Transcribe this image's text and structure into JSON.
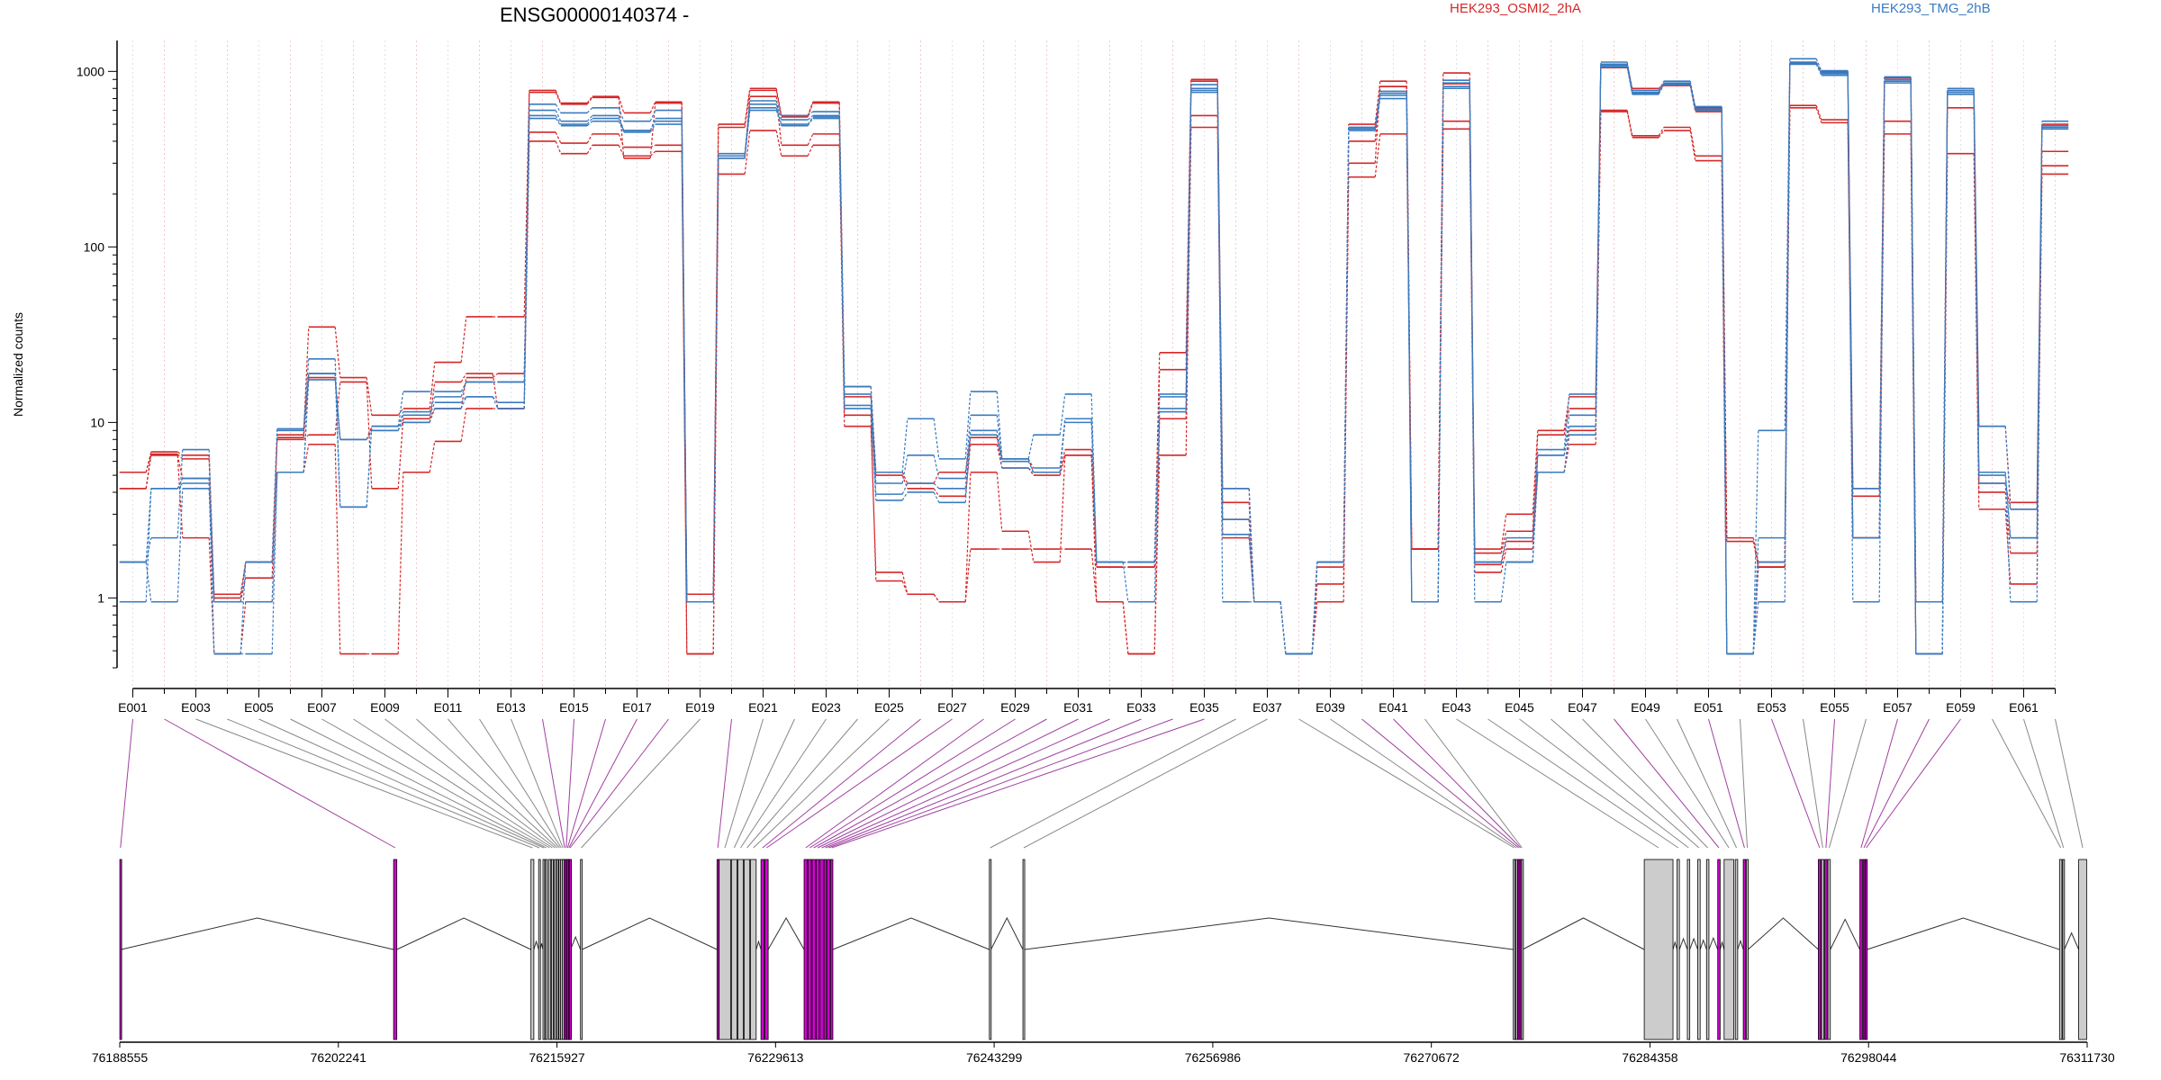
{
  "chart_data": {
    "type": "line",
    "title": "ENSG00000140374 -",
    "ylabel": "Normalized counts",
    "y_scale": "log",
    "ylim": [
      0.4,
      1500
    ],
    "y_ticks": [
      {
        "v": 1,
        "label": "1"
      },
      {
        "v": 10,
        "label": "10"
      },
      {
        "v": 100,
        "label": "100"
      },
      {
        "v": 1000,
        "label": "1000"
      }
    ],
    "grid": "vertical dotted lines at each exon",
    "legend": [
      {
        "name": "HEK293_OSMI2_2hA",
        "color": "#d62728"
      },
      {
        "name": "HEK293_TMG_2hB",
        "color": "#3a7bbf"
      }
    ],
    "categories": [
      "E001",
      "E002",
      "E003",
      "E004",
      "E005",
      "E006",
      "E007",
      "E008",
      "E009",
      "E010",
      "E011",
      "E012",
      "E013",
      "E014",
      "E015",
      "E016",
      "E017",
      "E018",
      "E019",
      "E020",
      "E021",
      "E022",
      "E023",
      "E024",
      "E025",
      "E026",
      "E027",
      "E028",
      "E029",
      "E030",
      "E031",
      "E032",
      "E033",
      "E034",
      "E035",
      "E036",
      "E037",
      "E038",
      "E039",
      "E040",
      "E041",
      "E042",
      "E043",
      "E044",
      "E045",
      "E046",
      "E047",
      "E048",
      "E049",
      "E050",
      "E051",
      "E052",
      "E053",
      "E054",
      "E055",
      "E056",
      "E057",
      "E058",
      "E059",
      "E060",
      "E061",
      "E062"
    ],
    "tick_labels": [
      "E001",
      "E003",
      "E005",
      "E007",
      "E009",
      "E011",
      "E013",
      "E015",
      "E017",
      "E019",
      "E021",
      "E023",
      "E025",
      "E027",
      "E029",
      "E031",
      "E033",
      "E035",
      "E037",
      "E039",
      "E041",
      "E043",
      "E045",
      "E047",
      "E049",
      "E051",
      "E053",
      "E055",
      "E057",
      "E059",
      "E061"
    ],
    "series": [
      {
        "name": "HEK293_OSMI2_2hA",
        "color": "#d62728",
        "values": [
          5.2,
          6.8,
          6.5,
          1.05,
          1.6,
          8.5,
          35,
          18,
          11,
          12,
          22,
          40,
          40,
          780,
          660,
          720,
          580,
          670,
          1.05,
          500,
          800,
          560,
          670,
          16,
          5.2,
          4.5,
          5.2,
          8.2,
          6.2,
          5.2,
          7,
          1.5,
          1.5,
          25,
          900,
          4.2,
          0.95,
          0.48,
          1.6,
          500,
          880,
          1.9,
          980,
          1.9,
          3,
          9,
          14,
          1100,
          800,
          850,
          620,
          2.2,
          1.6,
          1120,
          1000,
          4.2,
          920,
          0.95,
          780,
          9.5,
          3.5,
          500
        ]
      },
      {
        "name": "HEK293_OSMI2_2hA",
        "color": "#d62728",
        "values": [
          4.2,
          6.6,
          6.2,
          0.95,
          1.3,
          8,
          8.5,
          17,
          4.2,
          10.5,
          12,
          18,
          19,
          450,
          390,
          440,
          370,
          380,
          0.48,
          320,
          720,
          380,
          440,
          14,
          5,
          4.2,
          3.8,
          7.5,
          5.5,
          5,
          6.5,
          1.5,
          1.5,
          20,
          880,
          3.5,
          0.95,
          0.48,
          1.5,
          400,
          820,
          1.9,
          850,
          1.8,
          2.4,
          8.5,
          12,
          1050,
          780,
          830,
          590,
          2.1,
          1.5,
          1100,
          980,
          3.8,
          880,
          0.95,
          760,
          4.5,
          3.2,
          350
        ]
      },
      {
        "name": "HEK293_OSMI2_2hA",
        "color": "#d62728",
        "values": [
          5.2,
          6.5,
          4.8,
          1.0,
          1.6,
          8.2,
          18,
          8,
          9.5,
          10,
          17,
          19,
          12,
          760,
          650,
          710,
          320,
          660,
          0.95,
          480,
          780,
          550,
          660,
          11,
          1.25,
          1.05,
          0.95,
          5.2,
          2.4,
          1.6,
          6.5,
          0.95,
          0.48,
          10.5,
          560,
          2.8,
          0.95,
          0.48,
          1.2,
          300,
          820,
          1.9,
          520,
          1.55,
          2.1,
          5.2,
          9,
          600,
          430,
          480,
          330,
          0.48,
          1.5,
          640,
          530,
          2.2,
          520,
          0.48,
          620,
          4,
          1.8,
          290
        ]
      },
      {
        "name": "HEK293_OSMI2_2hA",
        "color": "#d62728",
        "values": [
          4.2,
          6.5,
          2.2,
          0.48,
          0.95,
          5.2,
          7.5,
          0.48,
          0.48,
          5.2,
          7.8,
          12,
          12,
          400,
          340,
          380,
          330,
          350,
          0.48,
          260,
          460,
          330,
          380,
          9.5,
          1.4,
          1.05,
          0.95,
          1.9,
          1.9,
          1.9,
          1.9,
          0.95,
          0.48,
          6.5,
          480,
          2.2,
          0.95,
          0.48,
          0.95,
          250,
          440,
          1.9,
          470,
          1.4,
          1.9,
          5.2,
          7.5,
          590,
          420,
          460,
          310,
          0.48,
          1.5,
          620,
          510,
          2.2,
          440,
          0.48,
          340,
          3.2,
          1.2,
          260
        ]
      },
      {
        "name": "HEK293_TMG_2hB",
        "color": "#3a7bbf",
        "values": [
          1.6,
          2.2,
          7,
          0.95,
          1.6,
          9.2,
          23,
          3.3,
          9.5,
          15,
          15,
          17,
          17,
          650,
          580,
          620,
          520,
          600,
          0.95,
          330,
          680,
          560,
          590,
          16,
          5.2,
          10.5,
          6.2,
          15,
          6.2,
          8.5,
          14.5,
          1.6,
          1.6,
          14.5,
          840,
          4.2,
          0.95,
          0.48,
          1.6,
          480,
          770,
          0.95,
          890,
          1.6,
          1.6,
          7,
          14.5,
          1130,
          780,
          880,
          630,
          0.48,
          9,
          1180,
          1010,
          4.2,
          930,
          0.95,
          800,
          9.5,
          3.2,
          520
        ]
      },
      {
        "name": "HEK293_TMG_2hB",
        "color": "#3a7bbf",
        "values": [
          0.95,
          4.2,
          4.8,
          0.48,
          1.6,
          9,
          19,
          3.3,
          9.5,
          11.5,
          14,
          17,
          17,
          600,
          520,
          560,
          460,
          540,
          0.95,
          340,
          650,
          530,
          560,
          14.5,
          4.5,
          6.5,
          4.8,
          11,
          6.2,
          5.5,
          10.5,
          1.6,
          1.6,
          14,
          800,
          2.8,
          0.95,
          0.48,
          1.6,
          480,
          750,
          0.95,
          860,
          1.6,
          2.2,
          6.5,
          11,
          1100,
          760,
          860,
          610,
          0.48,
          2.2,
          1130,
          990,
          2.2,
          900,
          0.48,
          780,
          5.2,
          2.2,
          490
        ]
      },
      {
        "name": "HEK293_TMG_2hB",
        "color": "#3a7bbf",
        "values": [
          1.6,
          4.2,
          4.5,
          0.48,
          0.48,
          5.2,
          19,
          8,
          9,
          11,
          13,
          14,
          13,
          560,
          500,
          540,
          460,
          520,
          0.95,
          330,
          620,
          500,
          550,
          12.5,
          3.9,
          4.5,
          4.2,
          9,
          6,
          5.2,
          10.5,
          1.6,
          1.6,
          12,
          780,
          2.3,
          0.95,
          0.48,
          1.6,
          470,
          730,
          0.95,
          820,
          1.6,
          1.6,
          6.5,
          9.5,
          1080,
          750,
          850,
          610,
          0.48,
          1.6,
          1120,
          970,
          2.2,
          880,
          0.48,
          760,
          5,
          2.2,
          480
        ]
      },
      {
        "name": "HEK293_TMG_2hB",
        "color": "#3a7bbf",
        "values": [
          1.6,
          0.95,
          4.2,
          0.95,
          0.95,
          5.2,
          17.5,
          8,
          9,
          10,
          12,
          14,
          12,
          540,
          490,
          520,
          450,
          500,
          0.95,
          320,
          600,
          490,
          540,
          12,
          3.6,
          4,
          3.5,
          8.5,
          5.5,
          5.2,
          10,
          1.6,
          0.95,
          11.5,
          760,
          0.95,
          0.95,
          0.48,
          1.6,
          460,
          700,
          0.95,
          800,
          0.95,
          1.6,
          5.2,
          8.5,
          1060,
          740,
          840,
          600,
          0.48,
          0.95,
          1100,
          950,
          0.95,
          860,
          0.48,
          740,
          4.5,
          0.95,
          470
        ]
      }
    ]
  },
  "gene_model": {
    "genomic_ticks": [
      "76188555",
      "76202241",
      "76215927",
      "76229613",
      "76243299",
      "76256986",
      "76270672",
      "76284358",
      "76298044",
      "76311730"
    ],
    "genomic_range": [
      76188555,
      76311730
    ],
    "highlight_color": "#d400d4",
    "exons": [
      {
        "id": "E001",
        "start": 76188560,
        "end": 76188640,
        "hl": true
      },
      {
        "id": "E002",
        "start": 76205700,
        "end": 76205900,
        "hl": true
      },
      {
        "id": "E003",
        "start": 76214300,
        "end": 76214480,
        "hl": false
      },
      {
        "id": "E004",
        "start": 76214780,
        "end": 76214880,
        "hl": false
      },
      {
        "id": "E005",
        "start": 76215050,
        "end": 76215150,
        "hl": false
      },
      {
        "id": "E006",
        "start": 76215200,
        "end": 76215320,
        "hl": false
      },
      {
        "id": "E007",
        "start": 76215400,
        "end": 76215540,
        "hl": false
      },
      {
        "id": "E008",
        "start": 76215580,
        "end": 76215700,
        "hl": false
      },
      {
        "id": "E009",
        "start": 76215760,
        "end": 76215860,
        "hl": false
      },
      {
        "id": "E010",
        "start": 76215900,
        "end": 76216000,
        "hl": false
      },
      {
        "id": "E011",
        "start": 76216050,
        "end": 76216120,
        "hl": false
      },
      {
        "id": "E012",
        "start": 76216150,
        "end": 76216230,
        "hl": false
      },
      {
        "id": "E013",
        "start": 76216260,
        "end": 76216340,
        "hl": false
      },
      {
        "id": "E014",
        "start": 76216370,
        "end": 76216450,
        "hl": true
      },
      {
        "id": "E015",
        "start": 76216470,
        "end": 76216540,
        "hl": true
      },
      {
        "id": "E016",
        "start": 76216560,
        "end": 76216620,
        "hl": true
      },
      {
        "id": "E017",
        "start": 76216650,
        "end": 76216700,
        "hl": true
      },
      {
        "id": "E018",
        "start": 76216720,
        "end": 76216780,
        "hl": true
      },
      {
        "id": "E019",
        "start": 76217400,
        "end": 76217500,
        "hl": false
      },
      {
        "id": "E020",
        "start": 76225950,
        "end": 76226050,
        "hl": true
      },
      {
        "id": "E021",
        "start": 76226080,
        "end": 76226800,
        "hl": false
      },
      {
        "id": "E022",
        "start": 76226850,
        "end": 76227200,
        "hl": false
      },
      {
        "id": "E023",
        "start": 76227250,
        "end": 76227600,
        "hl": false
      },
      {
        "id": "E024",
        "start": 76227650,
        "end": 76228000,
        "hl": false
      },
      {
        "id": "E025",
        "start": 76228050,
        "end": 76228400,
        "hl": false
      },
      {
        "id": "E026",
        "start": 76228700,
        "end": 76228900,
        "hl": true
      },
      {
        "id": "E027",
        "start": 76228950,
        "end": 76229150,
        "hl": true
      },
      {
        "id": "E028",
        "start": 76231400,
        "end": 76231600,
        "hl": true
      },
      {
        "id": "E029",
        "start": 76231650,
        "end": 76231850,
        "hl": true
      },
      {
        "id": "E030",
        "start": 76231900,
        "end": 76232100,
        "hl": true
      },
      {
        "id": "E031",
        "start": 76232150,
        "end": 76232350,
        "hl": true
      },
      {
        "id": "E032",
        "start": 76232400,
        "end": 76232600,
        "hl": true
      },
      {
        "id": "E033",
        "start": 76232650,
        "end": 76232800,
        "hl": true
      },
      {
        "id": "E034",
        "start": 76232850,
        "end": 76233000,
        "hl": true
      },
      {
        "id": "E035",
        "start": 76233050,
        "end": 76233200,
        "hl": true
      },
      {
        "id": "E036",
        "start": 76243000,
        "end": 76243100,
        "hl": false
      },
      {
        "id": "E037",
        "start": 76245100,
        "end": 76245200,
        "hl": false
      },
      {
        "id": "E038",
        "start": 76275800,
        "end": 76275900,
        "hl": false
      },
      {
        "id": "E039",
        "start": 76275950,
        "end": 76276050,
        "hl": false
      },
      {
        "id": "E040",
        "start": 76276100,
        "end": 76276180,
        "hl": true
      },
      {
        "id": "E041",
        "start": 76276220,
        "end": 76276300,
        "hl": true
      },
      {
        "id": "E042",
        "start": 76276320,
        "end": 76276380,
        "hl": false
      },
      {
        "id": "E043",
        "start": 76284000,
        "end": 76285800,
        "hl": false
      },
      {
        "id": "E044",
        "start": 76286050,
        "end": 76286200,
        "hl": false
      },
      {
        "id": "E045",
        "start": 76286700,
        "end": 76286850,
        "hl": false
      },
      {
        "id": "E046",
        "start": 76287350,
        "end": 76287500,
        "hl": false
      },
      {
        "id": "E047",
        "start": 76287900,
        "end": 76288050,
        "hl": false
      },
      {
        "id": "E048",
        "start": 76288600,
        "end": 76288750,
        "hl": true
      },
      {
        "id": "E049",
        "start": 76289000,
        "end": 76289600,
        "hl": false
      },
      {
        "id": "E050",
        "start": 76289700,
        "end": 76289850,
        "hl": false
      },
      {
        "id": "E051",
        "start": 76290200,
        "end": 76290350,
        "hl": true
      },
      {
        "id": "E052",
        "start": 76290400,
        "end": 76290500,
        "hl": false
      },
      {
        "id": "E053",
        "start": 76294900,
        "end": 76295050,
        "hl": true
      },
      {
        "id": "E054",
        "start": 76295100,
        "end": 76295250,
        "hl": false
      },
      {
        "id": "E055",
        "start": 76295300,
        "end": 76295450,
        "hl": true
      },
      {
        "id": "E056",
        "start": 76295500,
        "end": 76295650,
        "hl": false
      },
      {
        "id": "E057",
        "start": 76297500,
        "end": 76297650,
        "hl": true
      },
      {
        "id": "E058",
        "start": 76297700,
        "end": 76297800,
        "hl": true
      },
      {
        "id": "E059",
        "start": 76297850,
        "end": 76297950,
        "hl": true
      },
      {
        "id": "E060",
        "start": 76310000,
        "end": 76310150,
        "hl": false
      },
      {
        "id": "E061",
        "start": 76310200,
        "end": 76310300,
        "hl": false
      },
      {
        "id": "E062",
        "start": 76311200,
        "end": 76311700,
        "hl": false
      }
    ]
  }
}
